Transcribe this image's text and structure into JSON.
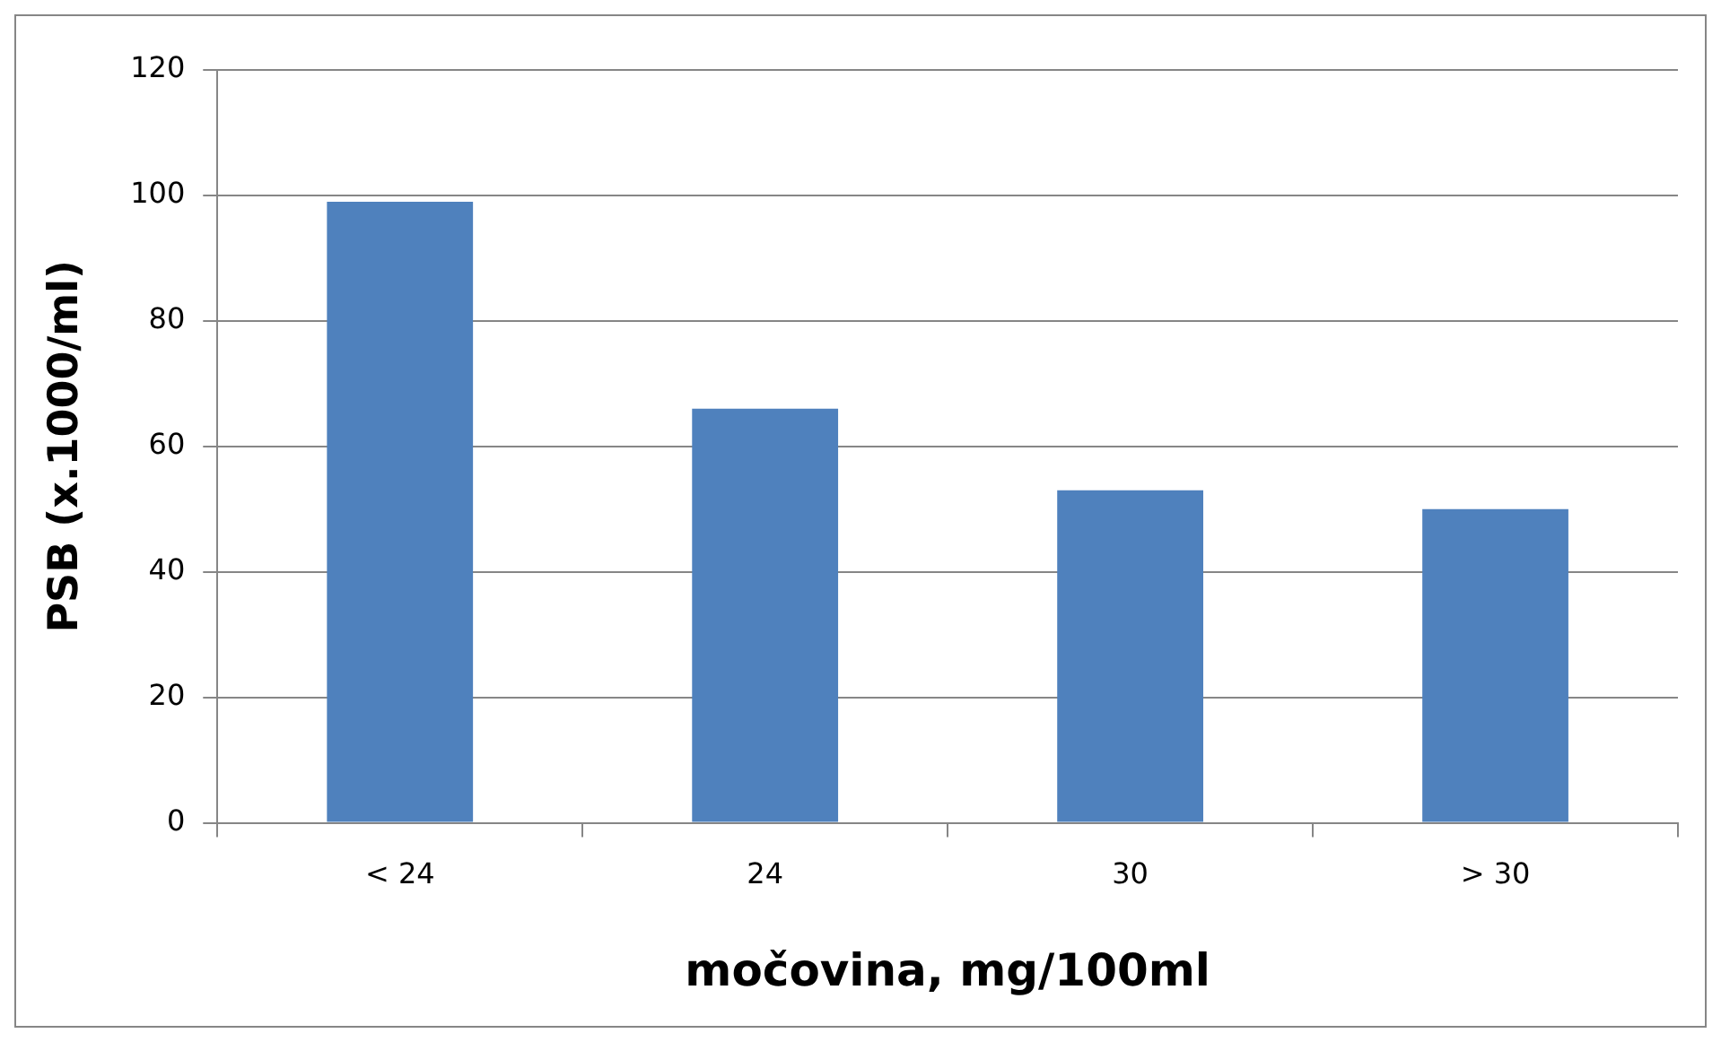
{
  "chart_data": {
    "type": "bar",
    "xlabel": "močovina, mg/100ml",
    "ylabel": "PSB (x.1000/ml)",
    "categories": [
      "< 24",
      "24",
      "30",
      "> 30"
    ],
    "values": [
      99,
      66,
      53,
      50
    ],
    "color": "#4f81bd",
    "ylim": [
      0,
      120
    ],
    "yticks": [
      0,
      20,
      40,
      60,
      80,
      100,
      120
    ],
    "grid": "y"
  }
}
